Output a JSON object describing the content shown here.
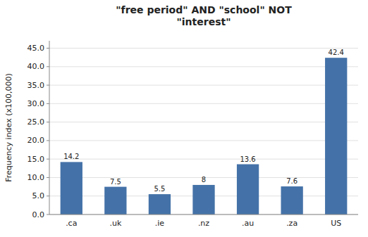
{
  "chart_data": {
    "type": "bar",
    "title": "\"free period\" AND \"school\" NOT\n\"interest\"",
    "y_label": "Frequency index (x100,000)",
    "categories": [
      ".ca",
      ".uk",
      ".ie",
      ".nz",
      ".au",
      ".za",
      "US"
    ],
    "values": [
      14.2,
      7.5,
      5.5,
      8.0,
      13.6,
      7.6,
      42.4
    ],
    "color": "#4472a8",
    "ylim": [
      0,
      47
    ],
    "yticks": [
      {
        "value": 0,
        "label": "0.0"
      },
      {
        "value": 5,
        "label": "5.0"
      },
      {
        "value": 10,
        "label": "10.0"
      },
      {
        "value": 15,
        "label": "15.0"
      },
      {
        "value": 20,
        "label": "20.0"
      },
      {
        "value": 25,
        "label": "25.0"
      },
      {
        "value": 30,
        "label": "30.0"
      },
      {
        "value": 35,
        "label": "35.0"
      },
      {
        "value": 40,
        "label": "40.0"
      },
      {
        "value": 45,
        "label": "45.0"
      }
    ],
    "grid": true,
    "data_labels": true
  }
}
